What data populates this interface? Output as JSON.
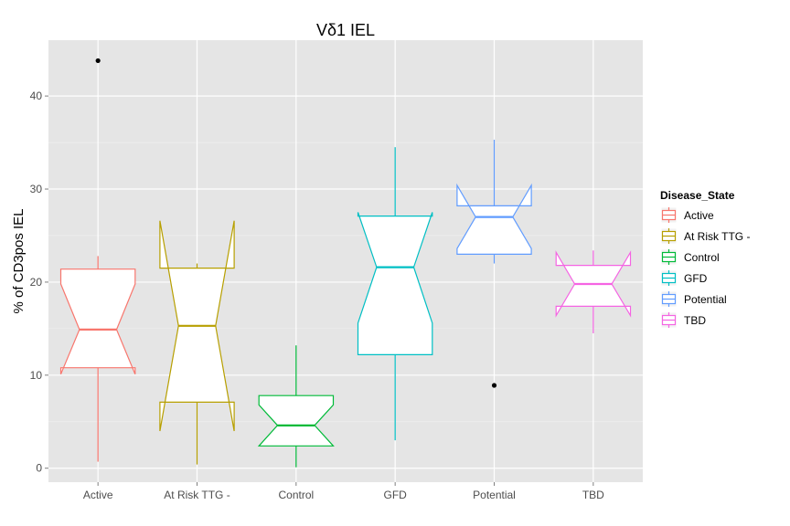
{
  "chart_data": {
    "type": "boxplot",
    "notched": true,
    "title": "Vδ1 IEL",
    "xlabel": "",
    "ylabel": "% of CD3pos IEL",
    "ylim": [
      -1.5,
      46
    ],
    "y_ticks": [
      0,
      10,
      20,
      30,
      40
    ],
    "grid": true,
    "legend_title": "Disease_State",
    "legend_position": "right",
    "categories": [
      "Active",
      "At Risk TTG -",
      "Control",
      "GFD",
      "Potential",
      "TBD"
    ],
    "series": [
      {
        "name": "Active",
        "color": "#F8766D",
        "min": 0.7,
        "q1": 10.8,
        "median": 14.9,
        "q3": 21.4,
        "max": 22.8,
        "notch_low": 10.1,
        "notch_high": 19.8,
        "outliers": [
          43.8
        ]
      },
      {
        "name": "At Risk TTG -",
        "color": "#B79F00",
        "min": 0.4,
        "q1": 7.1,
        "median": 15.3,
        "q3": 21.5,
        "max": 22.0,
        "notch_low": 4.0,
        "notch_high": 26.6,
        "outliers": []
      },
      {
        "name": "Control",
        "color": "#00BA38",
        "min": 0.1,
        "q1": 2.4,
        "median": 4.6,
        "q3": 7.8,
        "max": 13.2,
        "notch_low": 2.4,
        "notch_high": 6.8,
        "outliers": []
      },
      {
        "name": "GFD",
        "color": "#00BFC4",
        "min": 3.0,
        "q1": 12.2,
        "median": 21.6,
        "q3": 27.1,
        "max": 34.5,
        "notch_low": 15.6,
        "notch_high": 27.5,
        "outliers": []
      },
      {
        "name": "Potential",
        "color": "#619CFF",
        "min": 22.0,
        "q1": 23.0,
        "median": 27.0,
        "q3": 28.2,
        "max": 35.3,
        "notch_low": 23.6,
        "notch_high": 30.4,
        "outliers": [
          8.9
        ]
      },
      {
        "name": "TBD",
        "color": "#F564E3",
        "min": 14.5,
        "q1": 17.4,
        "median": 19.8,
        "q3": 21.8,
        "max": 23.4,
        "notch_low": 16.4,
        "notch_high": 23.2,
        "outliers": []
      }
    ]
  }
}
